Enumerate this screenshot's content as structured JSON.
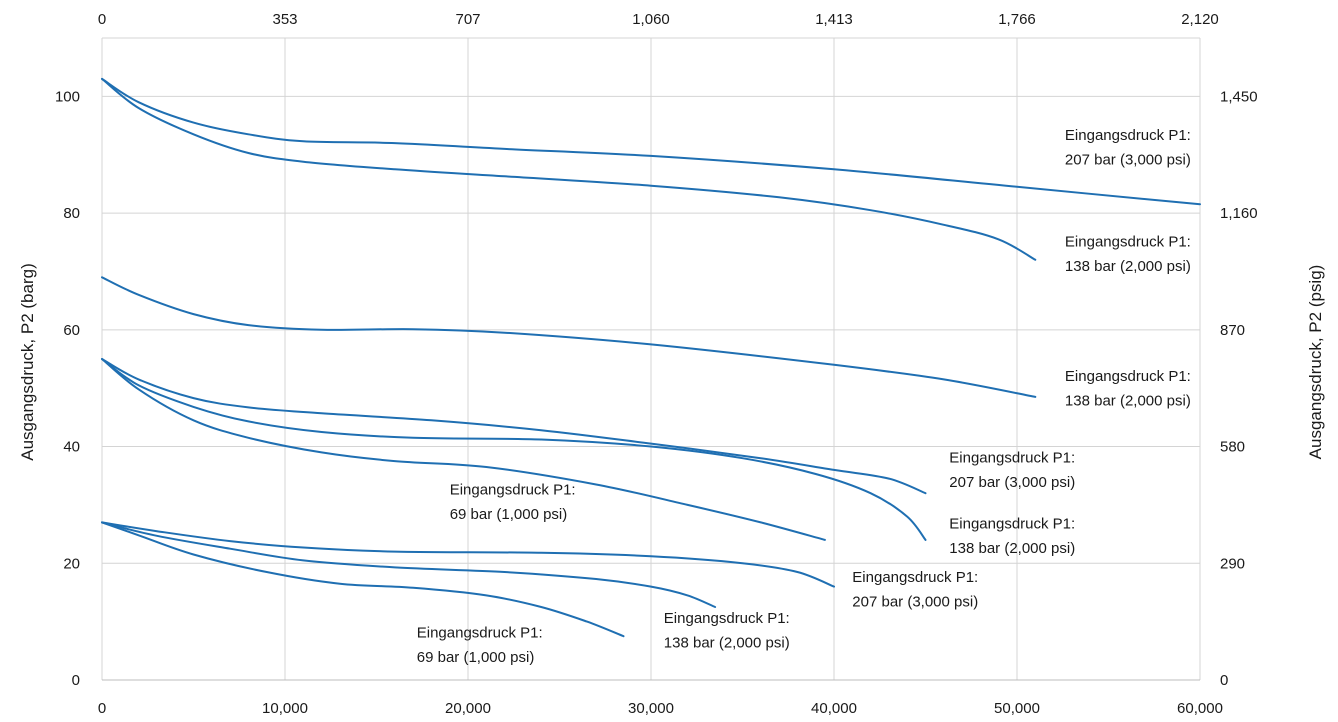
{
  "colors": {
    "series": "#1f6fb2",
    "grid": "#d4d4d4",
    "text": "#1a1a1a"
  },
  "chart_data": {
    "type": "line",
    "title": "",
    "grid": true,
    "x": {
      "label": "",
      "lim": [
        0,
        60000
      ],
      "ticks": [
        "0",
        "10,000",
        "20,000",
        "30,000",
        "40,000",
        "50,000",
        "60,000"
      ]
    },
    "x_top": {
      "label": "",
      "ticks": [
        "0",
        "353",
        "707",
        "1,060",
        "1,413",
        "1,766",
        "2,120"
      ]
    },
    "y": {
      "label": "Ausgangsdruck, P2 (barg)",
      "lim": [
        0,
        110
      ],
      "ticks": [
        "0",
        "20",
        "40",
        "60",
        "80",
        "100"
      ]
    },
    "y_right": {
      "label": "Ausgangsdruck, P2 (psig)",
      "ticks": [
        "0",
        "290",
        "580",
        "870",
        "1,160",
        "1,450"
      ]
    },
    "series": [
      {
        "points": [
          [
            0,
            103
          ],
          [
            2000,
            99
          ],
          [
            5000,
            95.5
          ],
          [
            8000,
            93.5
          ],
          [
            11000,
            92.3
          ],
          [
            16000,
            92
          ],
          [
            22000,
            91
          ],
          [
            30000,
            89.8
          ],
          [
            40000,
            87.5
          ],
          [
            50000,
            84.5
          ],
          [
            60000,
            81.5
          ]
        ]
      },
      {
        "points": [
          [
            0,
            103
          ],
          [
            2000,
            98
          ],
          [
            5000,
            93.5
          ],
          [
            8000,
            90.3
          ],
          [
            11000,
            88.8
          ],
          [
            16000,
            87.5
          ],
          [
            22000,
            86.3
          ],
          [
            30000,
            84.7
          ],
          [
            37000,
            82.7
          ],
          [
            42000,
            80.5
          ],
          [
            46000,
            78
          ],
          [
            49000,
            75.5
          ],
          [
            51000,
            72
          ]
        ]
      },
      {
        "points": [
          [
            0,
            69
          ],
          [
            2000,
            66
          ],
          [
            5000,
            62.7
          ],
          [
            8000,
            60.8
          ],
          [
            12000,
            60
          ],
          [
            17000,
            60.1
          ],
          [
            22000,
            59.5
          ],
          [
            30000,
            57.5
          ],
          [
            40000,
            54
          ],
          [
            46000,
            51.5
          ],
          [
            51000,
            48.5
          ]
        ]
      },
      {
        "points": [
          [
            0,
            55
          ],
          [
            2000,
            51.5
          ],
          [
            5000,
            48.3
          ],
          [
            8000,
            46.7
          ],
          [
            12000,
            45.7
          ],
          [
            18000,
            44.5
          ],
          [
            24000,
            42.8
          ],
          [
            30000,
            40.5
          ],
          [
            36000,
            38
          ],
          [
            40000,
            36
          ],
          [
            43000,
            34.5
          ],
          [
            45000,
            32
          ]
        ]
      },
      {
        "points": [
          [
            0,
            55
          ],
          [
            2000,
            50.5
          ],
          [
            5000,
            46.8
          ],
          [
            8000,
            44.3
          ],
          [
            12000,
            42.5
          ],
          [
            17000,
            41.5
          ],
          [
            24000,
            41.2
          ],
          [
            30000,
            40
          ],
          [
            35000,
            38
          ],
          [
            39000,
            35.3
          ],
          [
            42000,
            32
          ],
          [
            44000,
            28
          ],
          [
            45000,
            24
          ]
        ]
      },
      {
        "points": [
          [
            0,
            55
          ],
          [
            2000,
            49.8
          ],
          [
            5000,
            44.5
          ],
          [
            8000,
            41.5
          ],
          [
            12000,
            39
          ],
          [
            16000,
            37.5
          ],
          [
            21000,
            36.5
          ],
          [
            27000,
            33.5
          ],
          [
            32000,
            30
          ],
          [
            36000,
            27
          ],
          [
            39500,
            24
          ]
        ]
      },
      {
        "points": [
          [
            0,
            27
          ],
          [
            3000,
            25.5
          ],
          [
            7000,
            23.8
          ],
          [
            11000,
            22.7
          ],
          [
            16000,
            22
          ],
          [
            24000,
            21.8
          ],
          [
            30000,
            21.2
          ],
          [
            35000,
            20
          ],
          [
            38000,
            18.5
          ],
          [
            40000,
            16
          ]
        ]
      },
      {
        "points": [
          [
            0,
            27
          ],
          [
            3000,
            24.7
          ],
          [
            7000,
            22.5
          ],
          [
            11000,
            20.5
          ],
          [
            16000,
            19.3
          ],
          [
            22000,
            18.5
          ],
          [
            27000,
            17.3
          ],
          [
            30000,
            16
          ],
          [
            32000,
            14.5
          ],
          [
            33500,
            12.5
          ]
        ]
      },
      {
        "points": [
          [
            0,
            27
          ],
          [
            2000,
            24.8
          ],
          [
            5000,
            21.5
          ],
          [
            9000,
            18.5
          ],
          [
            13000,
            16.5
          ],
          [
            17000,
            15.8
          ],
          [
            21000,
            14.5
          ],
          [
            24000,
            12.5
          ],
          [
            26500,
            10
          ],
          [
            28500,
            7.5
          ]
        ]
      }
    ],
    "annotations": [
      {
        "lines": [
          "Eingangsdruck P1:",
          "207 bar (3,000 psi)"
        ],
        "x": 59500,
        "y1": 92.5,
        "y2": 88.3,
        "align": "end"
      },
      {
        "lines": [
          "Eingangsdruck P1:",
          "138 bar (2,000 psi)"
        ],
        "x": 59500,
        "y1": 74.3,
        "y2": 70.1,
        "align": "end"
      },
      {
        "lines": [
          "Eingangsdruck P1:",
          "138 bar (2,000 psi)"
        ],
        "x": 59500,
        "y1": 51.2,
        "y2": 47,
        "align": "end"
      },
      {
        "lines": [
          "Eingangsdruck P1:",
          "207 bar (3,000 psi)"
        ],
        "x": 46300,
        "y1": 37.3,
        "y2": 33.1,
        "align": "start"
      },
      {
        "lines": [
          "Eingangsdruck  P1:",
          "138 bar (2,000 psi)"
        ],
        "x": 46300,
        "y1": 26,
        "y2": 21.8,
        "align": "start"
      },
      {
        "lines": [
          "Eingangsdruck P1:",
          "69 bar (1,000 psi)"
        ],
        "x": 19000,
        "y1": 31.8,
        "y2": 27.6,
        "align": "start"
      },
      {
        "lines": [
          "Eingangsdruck P1:",
          "207 bar (3,000 psi)"
        ],
        "x": 41000,
        "y1": 16.8,
        "y2": 12.6,
        "align": "start"
      },
      {
        "lines": [
          "Eingangsdruck P1:",
          "138 bar (2,000 psi)"
        ],
        "x": 30700,
        "y1": 9.8,
        "y2": 5.6,
        "align": "start"
      },
      {
        "lines": [
          "Eingangsdruck  P1:",
          "69 bar (1,000 psi)"
        ],
        "x": 17200,
        "y1": 7.3,
        "y2": 3.1,
        "align": "start"
      }
    ]
  }
}
